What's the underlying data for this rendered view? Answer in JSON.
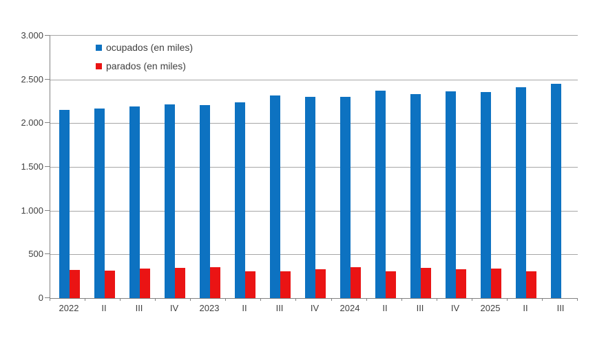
{
  "chart_data": {
    "type": "bar",
    "title": "",
    "categories": [
      "2022",
      "II",
      "III",
      "IV",
      "2023",
      "II",
      "III",
      "IV",
      "2024",
      "II",
      "III",
      "IV",
      "2025",
      "II",
      "III"
    ],
    "series": [
      {
        "name": "ocupados (en miles)",
        "color": "#0d72c1",
        "values": [
          2150,
          2170,
          2190,
          2215,
          2205,
          2235,
          2320,
          2300,
          2300,
          2370,
          2330,
          2365,
          2355,
          2410,
          2450
        ]
      },
      {
        "name": "parados (en miles)",
        "color": "#ea1414",
        "values": [
          320,
          318,
          340,
          345,
          352,
          308,
          305,
          328,
          352,
          307,
          344,
          326,
          337,
          307,
          null
        ]
      }
    ],
    "xlabel": "",
    "ylabel": "",
    "ylim": [
      0,
      3000
    ],
    "yticks": [
      0,
      500,
      1000,
      1500,
      2000,
      2500,
      3000
    ],
    "ytick_labels": [
      "0",
      "500",
      "1.000",
      "1.500",
      "2.000",
      "2.500",
      "3.000"
    ],
    "grid": true,
    "legend_position": "top-left inside plot area"
  },
  "colors": {
    "background": "#ffffff",
    "gridline": "#a6a6a6",
    "axis": "#808080",
    "text": "#404040",
    "ocupados": "#0d72c1",
    "parados": "#ea1414"
  }
}
